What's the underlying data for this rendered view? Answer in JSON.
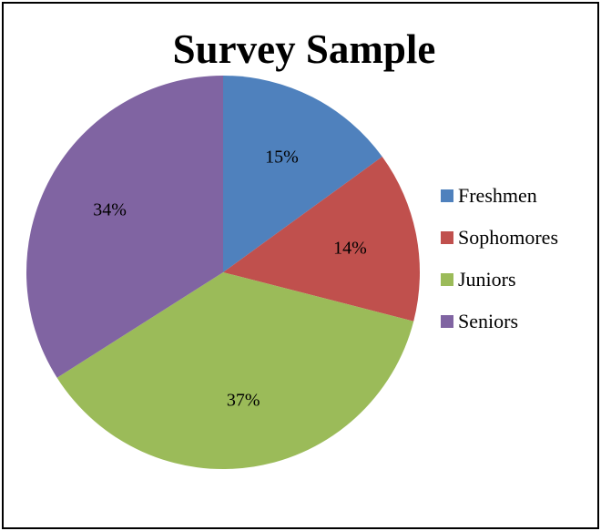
{
  "chart_data": {
    "type": "pie",
    "title": "Survey Sample",
    "categories": [
      "Freshmen",
      "Sophomores",
      "Juniors",
      "Seniors"
    ],
    "values": [
      15,
      14,
      37,
      34
    ],
    "labels": [
      "15%",
      "14%",
      "37%",
      "34%"
    ],
    "colors": [
      "#4f81bd",
      "#c0504d",
      "#9bbb59",
      "#8064a2"
    ],
    "legend_position": "right"
  }
}
